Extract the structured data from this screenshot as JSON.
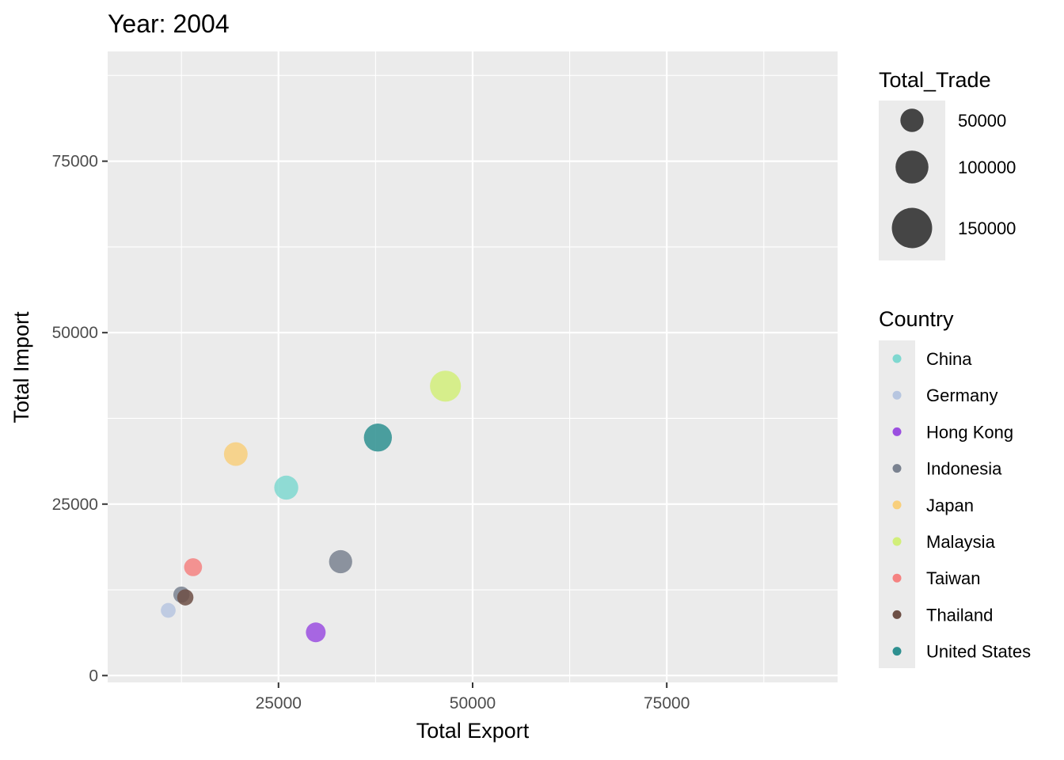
{
  "chart_data": {
    "type": "scatter",
    "title": "Year: 2004",
    "xlabel": "Total Export",
    "ylabel": "Total Import",
    "xlim": [
      3000,
      97000
    ],
    "ylim": [
      -1000,
      91000
    ],
    "x_ticks": [
      25000,
      50000,
      75000
    ],
    "x_tick_labels": [
      "25000",
      "50000",
      "75000"
    ],
    "y_ticks": [
      0,
      25000,
      50000,
      75000
    ],
    "y_tick_labels": [
      "0",
      "25000",
      "50000",
      "75000"
    ],
    "grid": true,
    "size_legend": {
      "title": "Total_Trade",
      "entries": [
        {
          "value": 50000,
          "label": "50000"
        },
        {
          "value": 100000,
          "label": "100000"
        },
        {
          "value": 150000,
          "label": "150000"
        }
      ]
    },
    "color_legend": {
      "title": "Country",
      "entries": [
        {
          "label": "China",
          "color": "#7fd8d0"
        },
        {
          "label": "Germany",
          "color": "#b7c6e0"
        },
        {
          "label": "Hong Kong",
          "color": "#9b4fe0"
        },
        {
          "label": "Indonesia",
          "color": "#7a8290"
        },
        {
          "label": "Japan",
          "color": "#f8cf7c"
        },
        {
          "label": "Malaysia",
          "color": "#d2ef7a"
        },
        {
          "label": "Taiwan",
          "color": "#f58281"
        },
        {
          "label": "Thailand",
          "color": "#6d4f45"
        },
        {
          "label": "United States",
          "color": "#2e9090"
        }
      ]
    },
    "points": [
      {
        "country": "Germany",
        "export": 10800,
        "import": 9500,
        "total_trade": 20300,
        "color": "#b7c6e0"
      },
      {
        "country": "Indonesia",
        "export": 12500,
        "import": 11800,
        "total_trade": 24300,
        "color": "#7a8290"
      },
      {
        "country": "Thailand",
        "export": 13000,
        "import": 11400,
        "total_trade": 24400,
        "color": "#6d4f45"
      },
      {
        "country": "Taiwan",
        "export": 14000,
        "import": 15800,
        "total_trade": 29800,
        "color": "#f58281"
      },
      {
        "country": "Japan",
        "export": 19500,
        "import": 32300,
        "total_trade": 51800,
        "color": "#f8cf7c"
      },
      {
        "country": "China",
        "export": 26000,
        "import": 27400,
        "total_trade": 53400,
        "color": "#7fd8d0"
      },
      {
        "country": "Hong Kong",
        "export": 29800,
        "import": 6300,
        "total_trade": 36100,
        "color": "#9b4fe0"
      },
      {
        "country": "Indonesia",
        "export": 33000,
        "import": 16600,
        "total_trade": 49600,
        "color": "#7a8290"
      },
      {
        "country": "United States",
        "export": 37800,
        "import": 34700,
        "total_trade": 72500,
        "color": "#2e9090"
      },
      {
        "country": "Malaysia",
        "export": 46500,
        "import": 42200,
        "total_trade": 88700,
        "color": "#d2ef7a"
      }
    ]
  }
}
